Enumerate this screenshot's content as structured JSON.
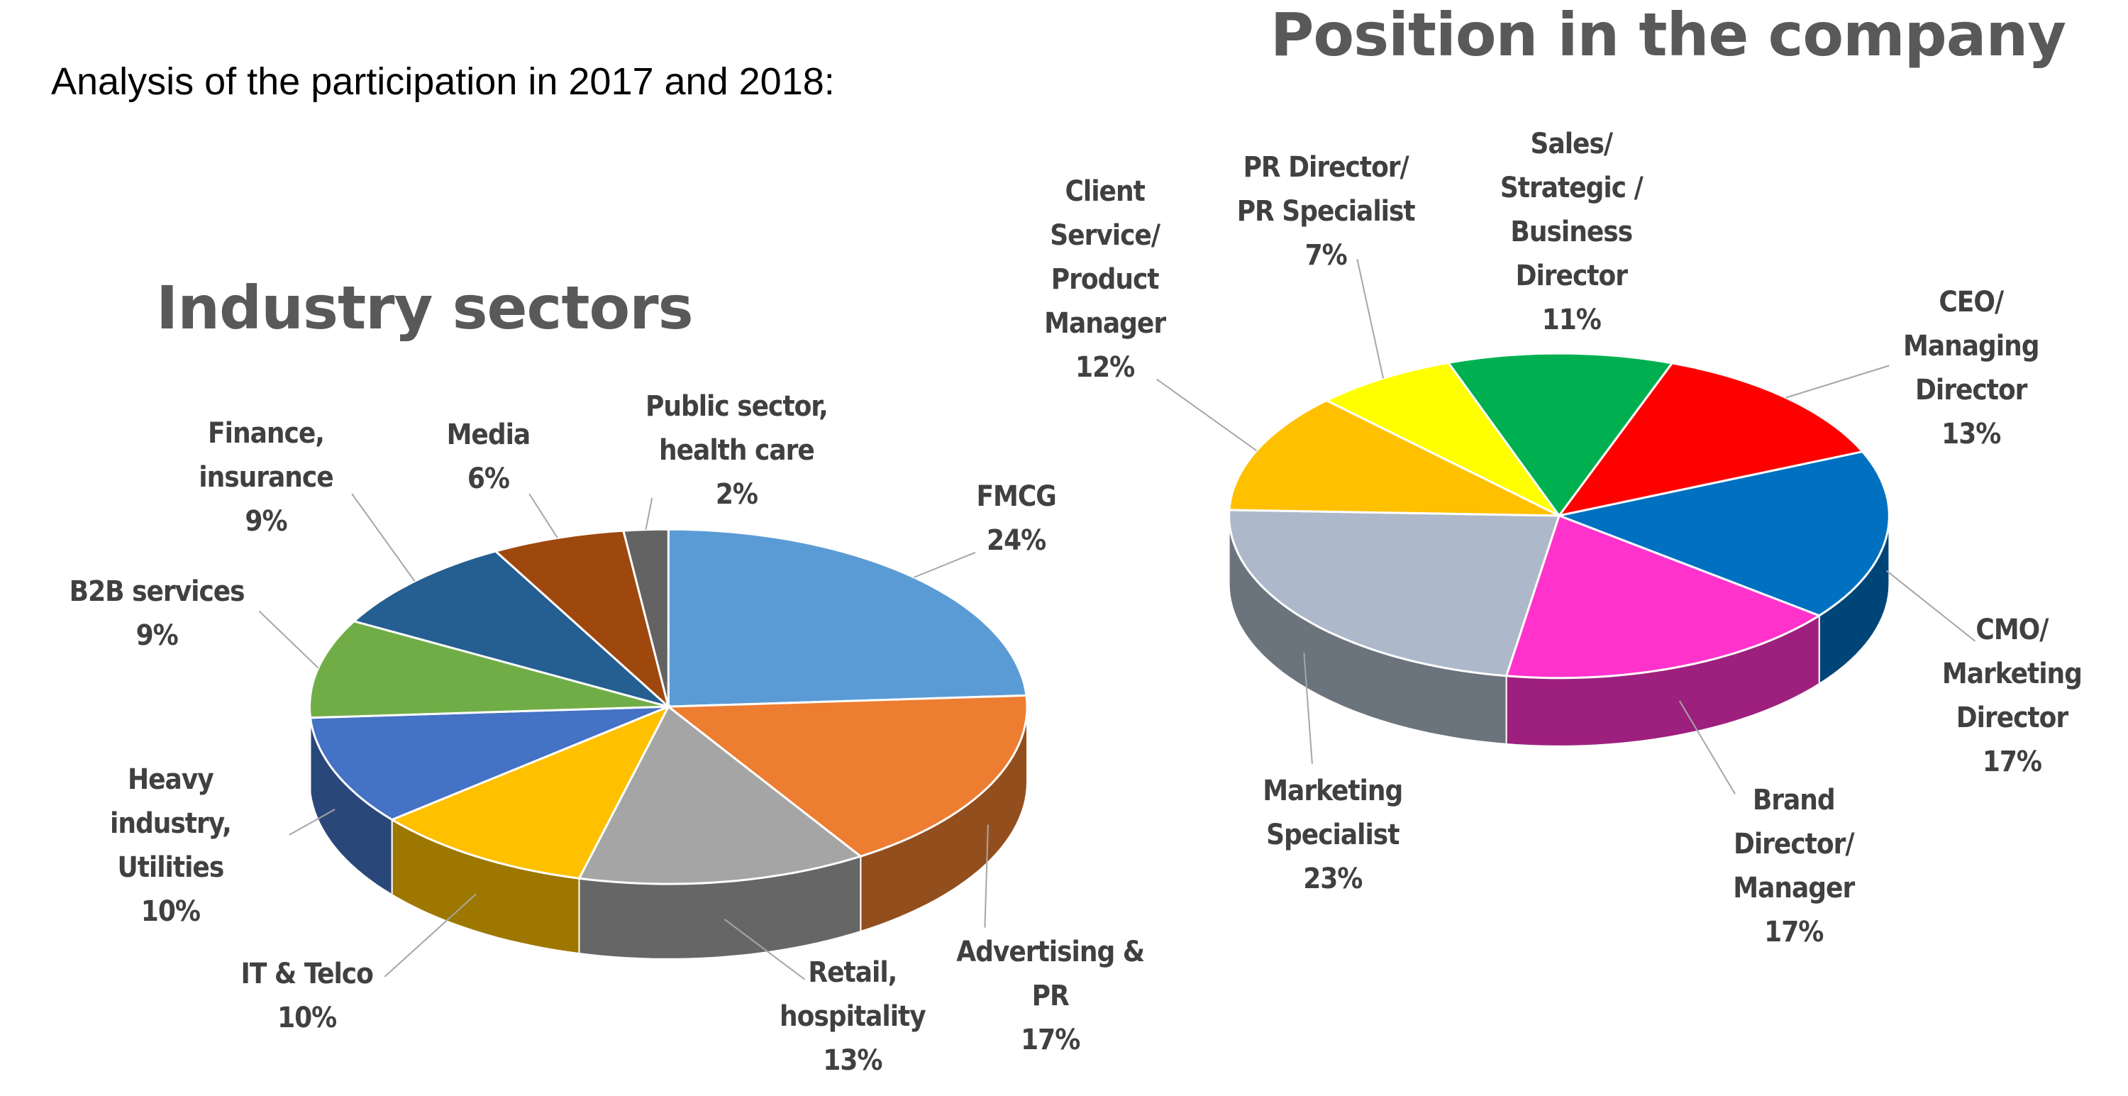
{
  "heading": "Analysis of the participation in 2017 and 2018:",
  "chart_data": [
    {
      "type": "pie3d",
      "title": "Industry sectors",
      "categories": [
        "FMCG",
        "Advertising & PR",
        "Retail, hospitality",
        "IT & Telco",
        "Heavy industry, Utilities",
        "B2B services",
        "Finance, insurance",
        "Media",
        "Public sector, health care"
      ],
      "values": [
        24,
        17,
        13,
        10,
        10,
        9,
        9,
        6,
        2
      ],
      "value_labels": [
        "24%",
        "17%",
        "13%",
        "10%",
        "10%",
        "9%",
        "9%",
        "6%",
        "2%"
      ],
      "colors": [
        "#5b9bd5",
        "#ed7d31",
        "#a5a5a5",
        "#ffc000",
        "#4472c4",
        "#70ad47",
        "#255e91",
        "#9e480e",
        "#636363"
      ]
    },
    {
      "type": "pie3d",
      "title": "Position in the company",
      "categories": [
        "CEO/ Managing Director",
        "CMO/ Marketing Director",
        "Brand Director/ Manager",
        "Marketing Specialist",
        "Client Service/ Product Manager",
        "PR Director/ PR Specialist",
        "Sales/ Strategic / Business Director"
      ],
      "values": [
        13,
        17,
        17,
        23,
        12,
        7,
        11
      ],
      "value_labels": [
        "13%",
        "17%",
        "17%",
        "23%",
        "12%",
        "7%",
        "11%"
      ],
      "colors": [
        "#ff0000",
        "#0070c0",
        "#ff33cc",
        "#adb9ca",
        "#ffc000",
        "#ffff00",
        "#00b050"
      ]
    }
  ]
}
